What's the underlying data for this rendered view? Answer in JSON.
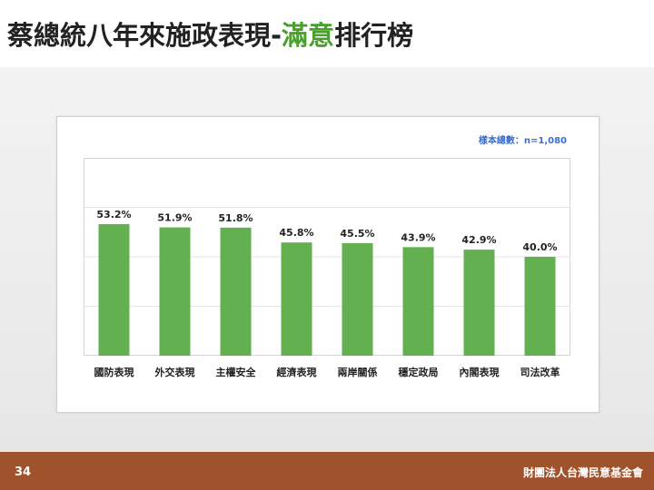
{
  "slide": {
    "title_prefix": "蔡總統八年來施政表現-",
    "title_highlight": "滿意",
    "title_suffix": "排行榜",
    "sample_note": "樣本總數：n=1,080",
    "page_number": "34",
    "organization": "財團法人台灣民意基金會"
  },
  "colors": {
    "bar": "#62b04f",
    "highlight": "#4aa02c",
    "footer": "#a0522d"
  },
  "chart_data": {
    "type": "bar",
    "categories": [
      "國防表現",
      "外交表現",
      "主權安全",
      "經濟表現",
      "兩岸關係",
      "穩定政局",
      "內閣表現",
      "司法改革"
    ],
    "values": [
      53.2,
      51.9,
      51.8,
      45.8,
      45.5,
      43.9,
      42.9,
      40.0
    ],
    "data_labels": [
      "53.2%",
      "51.9%",
      "51.8%",
      "45.8%",
      "45.5%",
      "43.9%",
      "42.9%",
      "40.0%"
    ],
    "ylim": [
      0,
      80
    ],
    "grid": true,
    "legend": "none",
    "title": "",
    "xlabel": "",
    "ylabel": ""
  }
}
